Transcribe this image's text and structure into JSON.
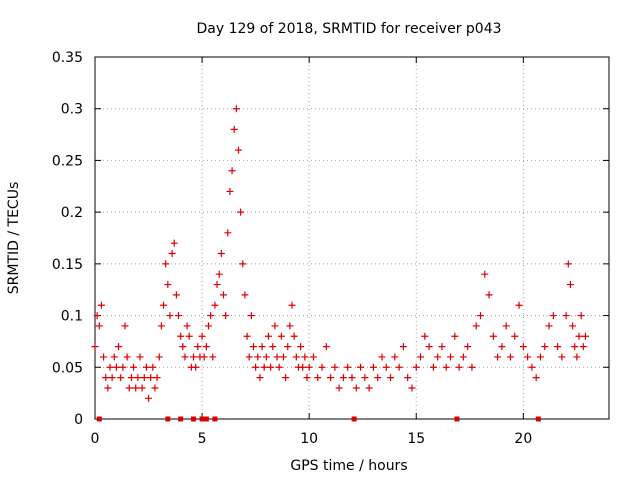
{
  "chart_data": {
    "type": "scatter",
    "title": "Day 129 of 2018, SRMTID for receiver p043",
    "xlabel": "GPS time / hours",
    "ylabel": "SRMTID / TECUs",
    "xlim": [
      0,
      24
    ],
    "ylim": [
      0,
      0.35
    ],
    "xticks": [
      0,
      5,
      10,
      15,
      20
    ],
    "xtick_labels": [
      "0",
      "5",
      "10",
      "15",
      "20"
    ],
    "yticks": [
      0,
      0.05,
      0.1,
      0.15,
      0.2,
      0.25,
      0.3,
      0.35
    ],
    "ytick_labels": [
      "0",
      "0.05",
      "0.1",
      "0.15",
      "0.2",
      "0.25",
      "0.3",
      "0.35"
    ],
    "grid": true,
    "marker": "+",
    "color": "#dd0000",
    "series": [
      {
        "name": "SRMTID",
        "points": [
          [
            0.0,
            0.07
          ],
          [
            0.1,
            0.1
          ],
          [
            0.2,
            0.09
          ],
          [
            0.3,
            0.11
          ],
          [
            0.4,
            0.06
          ],
          [
            0.5,
            0.04
          ],
          [
            0.6,
            0.03
          ],
          [
            0.7,
            0.05
          ],
          [
            0.8,
            0.04
          ],
          [
            0.9,
            0.06
          ],
          [
            1.0,
            0.05
          ],
          [
            1.1,
            0.07
          ],
          [
            1.2,
            0.04
          ],
          [
            1.3,
            0.05
          ],
          [
            1.4,
            0.09
          ],
          [
            1.5,
            0.06
          ],
          [
            1.6,
            0.03
          ],
          [
            1.7,
            0.04
          ],
          [
            1.8,
            0.05
          ],
          [
            1.9,
            0.03
          ],
          [
            2.0,
            0.04
          ],
          [
            2.1,
            0.06
          ],
          [
            2.2,
            0.03
          ],
          [
            2.3,
            0.04
          ],
          [
            2.4,
            0.05
          ],
          [
            2.5,
            0.02
          ],
          [
            2.6,
            0.04
          ],
          [
            2.7,
            0.05
          ],
          [
            2.8,
            0.03
          ],
          [
            2.9,
            0.04
          ],
          [
            3.0,
            0.06
          ],
          [
            3.1,
            0.09
          ],
          [
            3.2,
            0.11
          ],
          [
            3.3,
            0.15
          ],
          [
            3.4,
            0.13
          ],
          [
            3.5,
            0.1
          ],
          [
            3.6,
            0.16
          ],
          [
            3.7,
            0.17
          ],
          [
            3.8,
            0.12
          ],
          [
            3.9,
            0.1
          ],
          [
            4.0,
            0.08
          ],
          [
            4.1,
            0.07
          ],
          [
            4.2,
            0.06
          ],
          [
            4.3,
            0.09
          ],
          [
            4.4,
            0.08
          ],
          [
            4.5,
            0.05
          ],
          [
            4.6,
            0.06
          ],
          [
            4.7,
            0.05
          ],
          [
            4.8,
            0.07
          ],
          [
            4.9,
            0.06
          ],
          [
            5.0,
            0.08
          ],
          [
            5.1,
            0.06
          ],
          [
            5.2,
            0.07
          ],
          [
            5.3,
            0.09
          ],
          [
            5.4,
            0.1
          ],
          [
            5.5,
            0.06
          ],
          [
            5.6,
            0.11
          ],
          [
            5.7,
            0.13
          ],
          [
            5.8,
            0.14
          ],
          [
            5.9,
            0.16
          ],
          [
            6.0,
            0.12
          ],
          [
            6.1,
            0.1
          ],
          [
            6.2,
            0.18
          ],
          [
            6.3,
            0.22
          ],
          [
            6.4,
            0.24
          ],
          [
            6.5,
            0.28
          ],
          [
            6.6,
            0.3
          ],
          [
            6.7,
            0.26
          ],
          [
            6.8,
            0.2
          ],
          [
            6.9,
            0.15
          ],
          [
            7.0,
            0.12
          ],
          [
            7.1,
            0.08
          ],
          [
            7.2,
            0.06
          ],
          [
            7.3,
            0.1
          ],
          [
            7.4,
            0.07
          ],
          [
            7.5,
            0.05
          ],
          [
            7.6,
            0.06
          ],
          [
            7.7,
            0.04
          ],
          [
            7.8,
            0.07
          ],
          [
            7.9,
            0.05
          ],
          [
            8.0,
            0.06
          ],
          [
            8.1,
            0.08
          ],
          [
            8.2,
            0.05
          ],
          [
            8.3,
            0.07
          ],
          [
            8.4,
            0.09
          ],
          [
            8.5,
            0.06
          ],
          [
            8.6,
            0.05
          ],
          [
            8.7,
            0.08
          ],
          [
            8.8,
            0.06
          ],
          [
            8.9,
            0.04
          ],
          [
            9.0,
            0.07
          ],
          [
            9.1,
            0.09
          ],
          [
            9.2,
            0.11
          ],
          [
            9.3,
            0.08
          ],
          [
            9.4,
            0.06
          ],
          [
            9.5,
            0.05
          ],
          [
            9.6,
            0.07
          ],
          [
            9.7,
            0.05
          ],
          [
            9.8,
            0.06
          ],
          [
            9.9,
            0.04
          ],
          [
            10.0,
            0.05
          ],
          [
            10.2,
            0.06
          ],
          [
            10.4,
            0.04
          ],
          [
            10.6,
            0.05
          ],
          [
            10.8,
            0.07
          ],
          [
            11.0,
            0.04
          ],
          [
            11.2,
            0.05
          ],
          [
            11.4,
            0.03
          ],
          [
            11.6,
            0.04
          ],
          [
            11.8,
            0.05
          ],
          [
            12.0,
            0.04
          ],
          [
            12.2,
            0.03
          ],
          [
            12.4,
            0.05
          ],
          [
            12.6,
            0.04
          ],
          [
            12.8,
            0.03
          ],
          [
            13.0,
            0.05
          ],
          [
            13.2,
            0.04
          ],
          [
            13.4,
            0.06
          ],
          [
            13.6,
            0.05
          ],
          [
            13.8,
            0.04
          ],
          [
            14.0,
            0.06
          ],
          [
            14.2,
            0.05
          ],
          [
            14.4,
            0.07
          ],
          [
            14.6,
            0.04
          ],
          [
            14.8,
            0.03
          ],
          [
            15.0,
            0.05
          ],
          [
            15.2,
            0.06
          ],
          [
            15.4,
            0.08
          ],
          [
            15.6,
            0.07
          ],
          [
            15.8,
            0.05
          ],
          [
            16.0,
            0.06
          ],
          [
            16.2,
            0.07
          ],
          [
            16.4,
            0.05
          ],
          [
            16.6,
            0.06
          ],
          [
            16.8,
            0.08
          ],
          [
            17.0,
            0.05
          ],
          [
            17.2,
            0.06
          ],
          [
            17.4,
            0.07
          ],
          [
            17.6,
            0.05
          ],
          [
            17.8,
            0.09
          ],
          [
            18.0,
            0.1
          ],
          [
            18.2,
            0.14
          ],
          [
            18.4,
            0.12
          ],
          [
            18.6,
            0.08
          ],
          [
            18.8,
            0.06
          ],
          [
            19.0,
            0.07
          ],
          [
            19.2,
            0.09
          ],
          [
            19.4,
            0.06
          ],
          [
            19.6,
            0.08
          ],
          [
            19.8,
            0.11
          ],
          [
            20.0,
            0.07
          ],
          [
            20.2,
            0.06
          ],
          [
            20.4,
            0.05
          ],
          [
            20.6,
            0.04
          ],
          [
            20.8,
            0.06
          ],
          [
            21.0,
            0.07
          ],
          [
            21.2,
            0.09
          ],
          [
            21.4,
            0.1
          ],
          [
            21.6,
            0.07
          ],
          [
            21.8,
            0.06
          ],
          [
            22.0,
            0.1
          ],
          [
            22.1,
            0.15
          ],
          [
            22.2,
            0.13
          ],
          [
            22.3,
            0.09
          ],
          [
            22.4,
            0.07
          ],
          [
            22.5,
            0.06
          ],
          [
            22.6,
            0.08
          ],
          [
            22.7,
            0.1
          ],
          [
            22.8,
            0.07
          ],
          [
            22.9,
            0.08
          ]
        ]
      }
    ],
    "baseline_markers": {
      "name": "zero-value markers",
      "y": 0,
      "x": [
        0.2,
        3.4,
        4.0,
        4.6,
        5.0,
        5.2,
        5.6,
        12.1,
        16.9,
        20.7
      ]
    }
  }
}
